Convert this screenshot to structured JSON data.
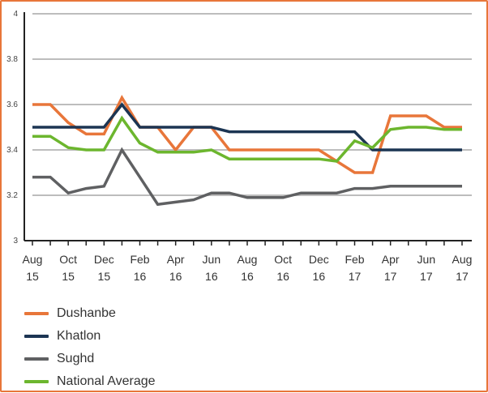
{
  "chart_data": {
    "type": "line",
    "x": [
      "Aug 15",
      "Sep 15",
      "Oct 15",
      "Nov 15",
      "Dec 15",
      "Jan 16",
      "Feb 16",
      "Mar 16",
      "Apr 16",
      "May 16",
      "Jun 16",
      "Jul 16",
      "Aug 16",
      "Sep 16",
      "Oct 16",
      "Nov 16",
      "Dec 16",
      "Jan 17",
      "Feb 17",
      "Mar 17",
      "Apr 17",
      "May 17",
      "Jun 17",
      "Jul 17",
      "Aug 17"
    ],
    "tick_labels": [
      {
        "index": 0,
        "top": "Aug",
        "bottom": "15"
      },
      {
        "index": 2,
        "top": "Oct",
        "bottom": "15"
      },
      {
        "index": 4,
        "top": "Dec",
        "bottom": "15"
      },
      {
        "index": 6,
        "top": "Feb",
        "bottom": "16"
      },
      {
        "index": 8,
        "top": "Apr",
        "bottom": "16"
      },
      {
        "index": 10,
        "top": "Jun",
        "bottom": "16"
      },
      {
        "index": 12,
        "top": "Aug",
        "bottom": "16"
      },
      {
        "index": 14,
        "top": "Oct",
        "bottom": "16"
      },
      {
        "index": 16,
        "top": "Dec",
        "bottom": "16"
      },
      {
        "index": 18,
        "top": "Feb",
        "bottom": "17"
      },
      {
        "index": 20,
        "top": "Apr",
        "bottom": "17"
      },
      {
        "index": 22,
        "top": "Jun",
        "bottom": "17"
      },
      {
        "index": 24,
        "top": "Aug",
        "bottom": "17"
      }
    ],
    "ylim": [
      3,
      4
    ],
    "yticks": [
      3,
      3.2,
      3.4,
      3.6,
      3.8,
      4
    ],
    "ytick_labels": [
      "3",
      "3.2",
      "3.4",
      "3.6",
      "3.8",
      "4"
    ],
    "grid": true,
    "legend_position": "bottom-left",
    "series": [
      {
        "name": "Dushanbe",
        "color": "#e8763a",
        "values": [
          3.6,
          3.6,
          3.52,
          3.47,
          3.47,
          3.63,
          3.5,
          3.5,
          3.4,
          3.5,
          3.5,
          3.4,
          3.4,
          3.4,
          3.4,
          3.4,
          3.4,
          3.35,
          3.3,
          3.3,
          3.55,
          3.55,
          3.55,
          3.5,
          3.5
        ]
      },
      {
        "name": "Khatlon",
        "color": "#1c3553",
        "values": [
          3.5,
          3.5,
          3.5,
          3.5,
          3.5,
          3.6,
          3.5,
          3.5,
          3.5,
          3.5,
          3.5,
          3.48,
          3.48,
          3.48,
          3.48,
          3.48,
          3.48,
          3.48,
          3.48,
          3.4,
          3.4,
          3.4,
          3.4,
          3.4,
          3.4
        ]
      },
      {
        "name": "Sughd",
        "color": "#5f6062",
        "values": [
          3.28,
          3.28,
          3.21,
          3.23,
          3.24,
          3.4,
          3.28,
          3.16,
          3.17,
          3.18,
          3.21,
          3.21,
          3.19,
          3.19,
          3.19,
          3.21,
          3.21,
          3.21,
          3.23,
          3.23,
          3.24,
          3.24,
          3.24,
          3.24,
          3.24
        ]
      },
      {
        "name": "National Average",
        "color": "#6cb62e",
        "values": [
          3.46,
          3.46,
          3.41,
          3.4,
          3.4,
          3.54,
          3.43,
          3.39,
          3.39,
          3.39,
          3.4,
          3.36,
          3.36,
          3.36,
          3.36,
          3.36,
          3.36,
          3.35,
          3.44,
          3.41,
          3.49,
          3.5,
          3.5,
          3.49,
          3.49
        ]
      }
    ]
  }
}
